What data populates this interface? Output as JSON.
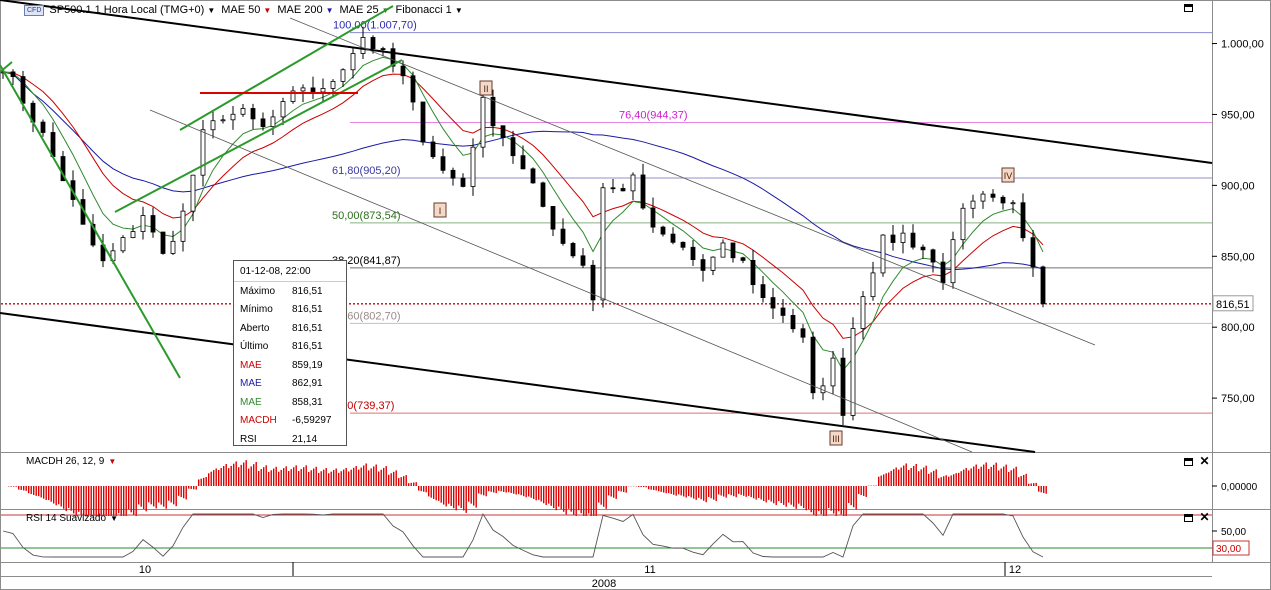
{
  "legend": {
    "symbol": "SP500.1",
    "badge": "CFD",
    "timeframe": "1 Hora Local (TMG+0)",
    "items": [
      {
        "label": "MAE 50",
        "color": "#cc0000"
      },
      {
        "label": "MAE 200",
        "color": "#1a1aa6"
      },
      {
        "label": "MAE 25",
        "color": "#2e8b2e"
      },
      {
        "label": "Fibonacci 1",
        "color": "#000000"
      }
    ]
  },
  "price_axis": {
    "ticks": [
      "1.000,00",
      "950,00",
      "900,00",
      "850,00",
      "800,00",
      "750,00"
    ],
    "current_label": "816,51"
  },
  "fibonacci": [
    {
      "label": "100,00(1.007,70)",
      "value": 1007.7,
      "color": "#2b2bb0"
    },
    {
      "label": "76,40(944,37)",
      "value": 944.37,
      "color": "#d020d0"
    },
    {
      "label": "61,80(905,20)",
      "value": 905.2,
      "color": "#3a3aa0"
    },
    {
      "label": "50,00(873,54)",
      "value": 873.54,
      "color": "#2a6e1a"
    },
    {
      "label": "38,20(841,87)",
      "value": 841.87,
      "color": "#000000"
    },
    {
      "label": "23,60(802,70)",
      "value": 802.7,
      "color": "#9a8a8a"
    },
    {
      "label": "0,00(739,37)",
      "value": 739.37,
      "color": "#c00000"
    }
  ],
  "wave_labels": [
    "II",
    "I",
    "IV",
    "III"
  ],
  "info_box": {
    "date": "01-12-08, 22:00",
    "rows": [
      {
        "key": "Máximo",
        "value": "816,51",
        "color": "#000000"
      },
      {
        "key": "Mínimo",
        "value": "816,51",
        "color": "#000000"
      },
      {
        "key": "Aberto",
        "value": "816,51",
        "color": "#000000"
      },
      {
        "key": "Último",
        "value": "816,51",
        "color": "#000000"
      },
      {
        "key": "MAE",
        "value": "859,19",
        "color": "#cc0000"
      },
      {
        "key": "MAE",
        "value": "862,91",
        "color": "#1a1aa6"
      },
      {
        "key": "MAE",
        "value": "858,31",
        "color": "#2e8b2e"
      },
      {
        "key": "MACDH",
        "value": "-6,59297",
        "color": "#cc0000"
      },
      {
        "key": "RSI",
        "value": "21,14",
        "color": "#000000"
      }
    ]
  },
  "macd_panel": {
    "title": "MACDH 26, 12, 9",
    "axis_label": "0,00000"
  },
  "rsi_panel": {
    "title": "RSI 14 Suavizado",
    "axis_label": "50,00",
    "level_label": "30,00"
  },
  "time_axis": {
    "day_labels": [
      "10",
      "11",
      "12"
    ],
    "year_label": "2008"
  },
  "chart_data": {
    "type": "candlestick",
    "ylim": [
      712,
      1030
    ],
    "key_prices": {
      "high": 1007.7,
      "low": 739.37,
      "last": 816.51
    },
    "close_path": [
      [
        0,
        985
      ],
      [
        2,
        960
      ],
      [
        4,
        935
      ],
      [
        6,
        905
      ],
      [
        8,
        870
      ],
      [
        10,
        845
      ],
      [
        12,
        860
      ],
      [
        14,
        880
      ],
      [
        16,
        850
      ],
      [
        18,
        880
      ],
      [
        20,
        935
      ],
      [
        22,
        950
      ],
      [
        24,
        950
      ],
      [
        26,
        940
      ],
      [
        28,
        955
      ],
      [
        30,
        970
      ],
      [
        32,
        965
      ],
      [
        34,
        985
      ],
      [
        36,
        1005
      ],
      [
        38,
        992
      ],
      [
        40,
        975
      ],
      [
        42,
        935
      ],
      [
        44,
        910
      ],
      [
        46,
        900
      ],
      [
        47,
        930
      ],
      [
        48,
        958
      ],
      [
        50,
        935
      ],
      [
        52,
        910
      ],
      [
        54,
        885
      ],
      [
        56,
        860
      ],
      [
        58,
        845
      ],
      [
        59,
        820
      ],
      [
        60,
        900
      ],
      [
        62,
        895
      ],
      [
        63,
        910
      ],
      [
        64,
        880
      ],
      [
        66,
        862
      ],
      [
        68,
        855
      ],
      [
        70,
        840
      ],
      [
        72,
        855
      ],
      [
        74,
        845
      ],
      [
        76,
        820
      ],
      [
        78,
        810
      ],
      [
        80,
        790
      ],
      [
        81,
        750
      ],
      [
        83,
        775
      ],
      [
        84,
        742
      ],
      [
        85,
        800
      ],
      [
        86,
        825
      ],
      [
        88,
        860
      ],
      [
        90,
        865
      ],
      [
        92,
        855
      ],
      [
        94,
        835
      ],
      [
        96,
        880
      ],
      [
        98,
        890
      ],
      [
        100,
        885
      ],
      [
        101,
        890
      ],
      [
        102,
        868
      ],
      [
        103,
        845
      ],
      [
        104,
        816.51
      ]
    ]
  }
}
